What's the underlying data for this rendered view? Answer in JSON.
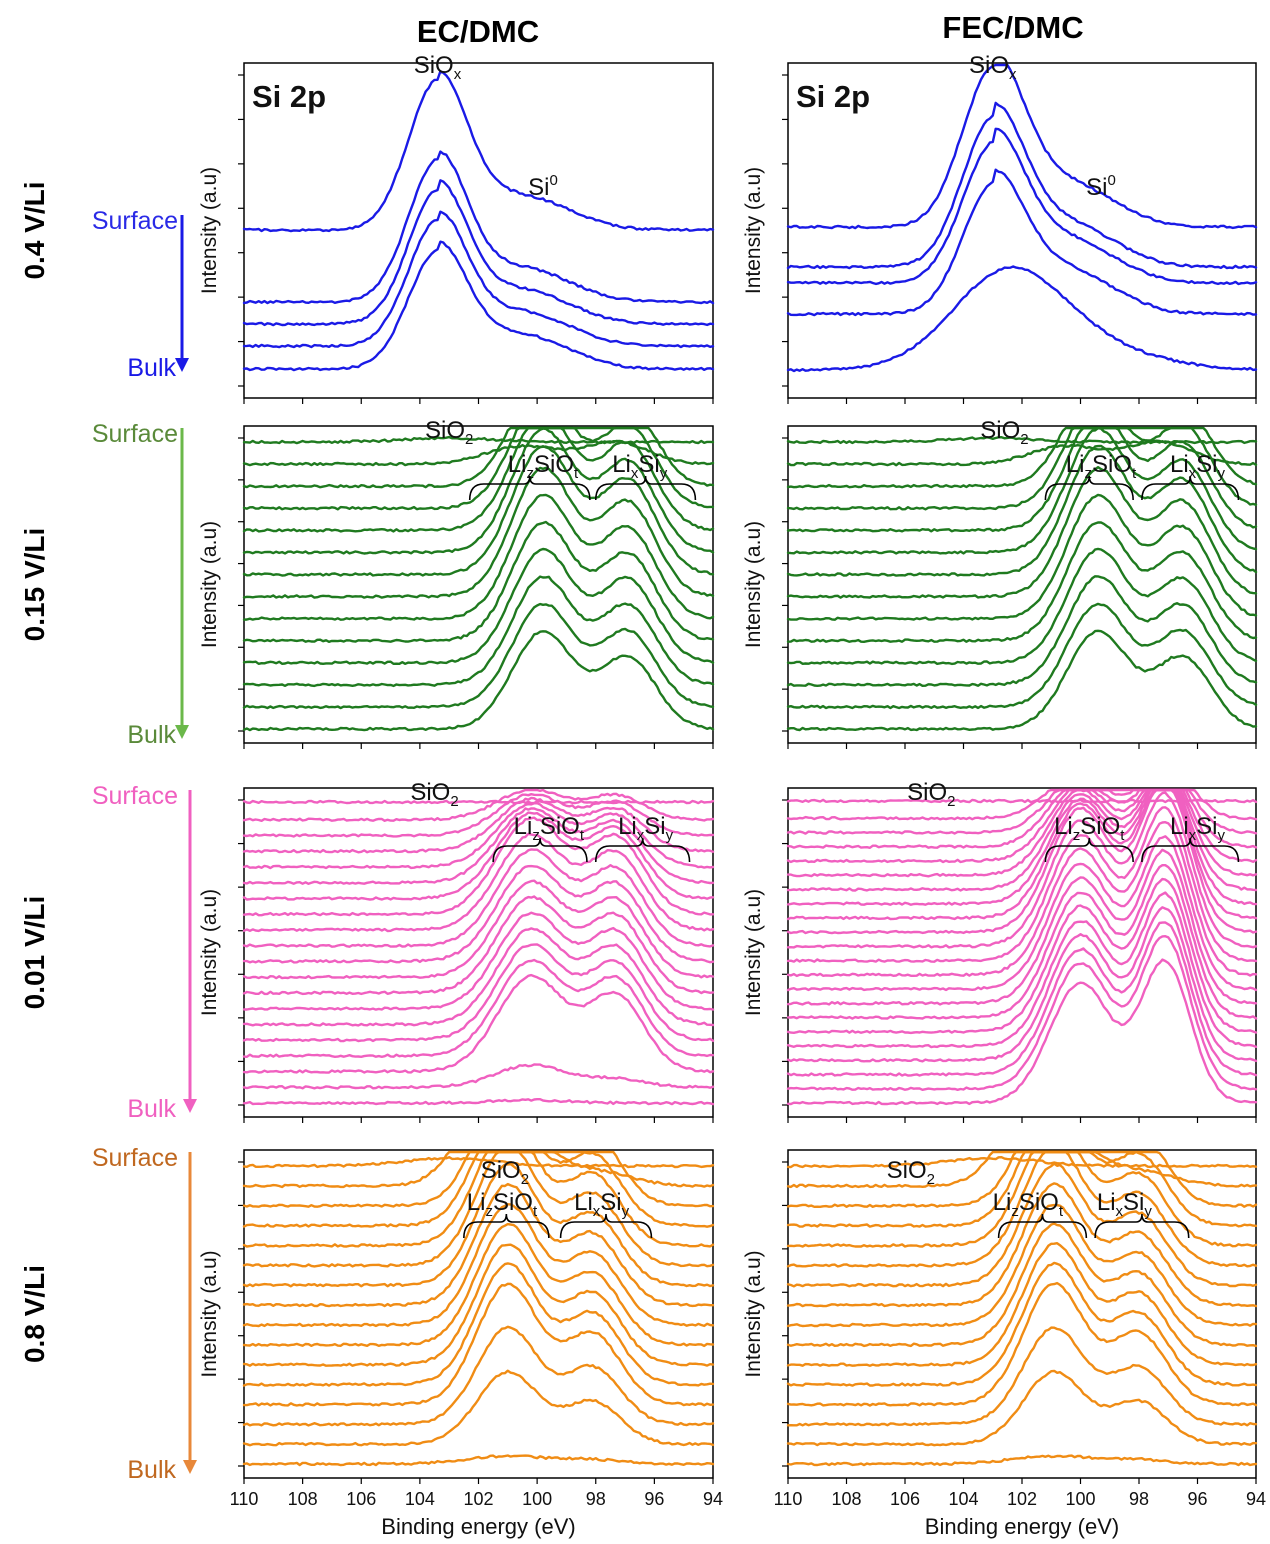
{
  "figure": {
    "column_titles": [
      "EC/DMC",
      "FEC/DMC"
    ],
    "ylabel": "Intensity (a.u)",
    "xlabel": "Binding energy (eV)",
    "x_ticks": [
      "110",
      "108",
      "106",
      "104",
      "102",
      "100",
      "98",
      "96",
      "94"
    ],
    "surface_label": "Surface",
    "bulk_label": "Bulk"
  },
  "chart_data": [
    {
      "type": "line",
      "row": 0,
      "column": "EC/DMC",
      "condition": "0.4 V/Li",
      "color": "#1a1ae6",
      "panel_title": "Si 2p",
      "n_traces": 5,
      "xlim": [
        110,
        94
      ],
      "peaks": [
        {
          "center": 103.4,
          "label": "SiOx"
        },
        {
          "center": 99.5,
          "label": "Si0"
        }
      ],
      "annotations": [
        {
          "base": "SiO",
          "sub": "x",
          "sup": "",
          "x": 103.4,
          "bracket": null
        },
        {
          "base": "Si",
          "sub": "",
          "sup": "0",
          "x": 99.8,
          "bracket": null
        }
      ]
    },
    {
      "type": "line",
      "row": 0,
      "column": "FEC/DMC",
      "condition": "0.4 V/Li",
      "color": "#1a1ae6",
      "panel_title": "Si 2p",
      "n_traces": 5,
      "xlim": [
        110,
        94
      ],
      "peaks": [
        {
          "center": 103.0,
          "label": "SiOx"
        },
        {
          "center": 99.5,
          "label": "Si0"
        }
      ],
      "annotations": [
        {
          "base": "SiO",
          "sub": "x",
          "sup": "",
          "x": 103.0,
          "bracket": null
        },
        {
          "base": "Si",
          "sub": "",
          "sup": "0",
          "x": 99.3,
          "bracket": null
        }
      ]
    },
    {
      "type": "line",
      "row": 1,
      "column": "EC/DMC",
      "condition": "0.15 V/Li",
      "color": "#1f7a1f",
      "panel_title": "",
      "n_traces": 14,
      "xlim": [
        110,
        94
      ],
      "peaks": [
        {
          "center": 103.0,
          "label": "SiO2"
        },
        {
          "center": 99.8,
          "label": "LizSiOt"
        },
        {
          "center": 96.9,
          "label": "LixSiy"
        }
      ],
      "annotations": [
        {
          "base": "SiO",
          "sub": "2",
          "sup": "",
          "x": 103.0,
          "bracket": null
        },
        {
          "base": "Li",
          "sub": "z",
          "sup": "",
          "tail": "SiO",
          "sub2": "t",
          "x": 99.8,
          "bracket": [
            102.3,
            98.2
          ]
        },
        {
          "base": "Li",
          "sub": "x",
          "sup": "",
          "tail": "Si",
          "sub2": "y",
          "x": 96.5,
          "bracket": [
            98.0,
            94.6
          ]
        }
      ]
    },
    {
      "type": "line",
      "row": 1,
      "column": "FEC/DMC",
      "condition": "0.15 V/Li",
      "color": "#1f7a1f",
      "panel_title": "",
      "n_traces": 14,
      "xlim": [
        110,
        94
      ],
      "peaks": [
        {
          "center": 103.1,
          "label": "SiO2"
        },
        {
          "center": 99.4,
          "label": "LizSiOt"
        },
        {
          "center": 96.5,
          "label": "LixSiy"
        }
      ],
      "annotations": [
        {
          "base": "SiO",
          "sub": "2",
          "sup": "",
          "x": 102.6,
          "bracket": null
        },
        {
          "base": "Li",
          "sub": "z",
          "sup": "",
          "tail": "SiO",
          "sub2": "t",
          "x": 99.3,
          "bracket": [
            101.2,
            98.2
          ]
        },
        {
          "base": "Li",
          "sub": "x",
          "sup": "",
          "tail": "Si",
          "sub2": "y",
          "x": 96.0,
          "bracket": [
            97.9,
            94.6
          ]
        }
      ]
    },
    {
      "type": "line",
      "row": 2,
      "column": "EC/DMC",
      "condition": "0.01 V/Li",
      "color": "#f060c0",
      "panel_title": "",
      "n_traces": 20,
      "xlim": [
        110,
        94
      ],
      "peaks": [
        {
          "center": 103.0,
          "label": "SiO2"
        },
        {
          "center": 100.2,
          "label": "LizSiOt"
        },
        {
          "center": 97.3,
          "label": "LixSiy"
        }
      ],
      "annotations": [
        {
          "base": "SiO",
          "sub": "2",
          "sup": "",
          "x": 103.5,
          "bracket": null
        },
        {
          "base": "Li",
          "sub": "z",
          "sup": "",
          "tail": "SiO",
          "sub2": "t",
          "x": 99.6,
          "bracket": [
            101.5,
            98.3
          ]
        },
        {
          "base": "Li",
          "sub": "x",
          "sup": "",
          "tail": "Si",
          "sub2": "y",
          "x": 96.3,
          "bracket": [
            98.0,
            94.8
          ]
        }
      ]
    },
    {
      "type": "line",
      "row": 2,
      "column": "FEC/DMC",
      "condition": "0.01 V/Li",
      "color": "#f060c0",
      "panel_title": "",
      "n_traces": 22,
      "xlim": [
        110,
        94
      ],
      "peaks": [
        {
          "center": 103.0,
          "label": "SiO2"
        },
        {
          "center": 100.0,
          "label": "LizSiOt"
        },
        {
          "center": 97.1,
          "label": "LixSiy"
        }
      ],
      "annotations": [
        {
          "base": "SiO",
          "sub": "2",
          "sup": "",
          "x": 105.1,
          "bracket": null
        },
        {
          "base": "Li",
          "sub": "z",
          "sup": "",
          "tail": "SiO",
          "sub2": "t",
          "x": 99.7,
          "bracket": [
            101.2,
            98.2
          ]
        },
        {
          "base": "Li",
          "sub": "x",
          "sup": "",
          "tail": "Si",
          "sub2": "y",
          "x": 96.0,
          "bracket": [
            97.9,
            94.6
          ]
        }
      ]
    },
    {
      "type": "line",
      "row": 3,
      "column": "EC/DMC",
      "condition": "0.8 V/Li",
      "color": "#f08c14",
      "panel_title": "",
      "n_traces": 16,
      "xlim": [
        110,
        94
      ],
      "peaks": [
        {
          "center": 103.0,
          "label": "SiO2"
        },
        {
          "center": 101.0,
          "label": "LizSiOt"
        },
        {
          "center": 98.1,
          "label": "LixSiy"
        }
      ],
      "annotations": [
        {
          "base": "SiO",
          "sub": "2",
          "sup": "",
          "x": 101.1,
          "bracket": null
        },
        {
          "base": "Li",
          "sub": "z",
          "sup": "",
          "tail": "SiO",
          "sub2": "t",
          "x": 101.2,
          "bracket": [
            102.5,
            99.6
          ]
        },
        {
          "base": "Li",
          "sub": "x",
          "sup": "",
          "tail": "Si",
          "sub2": "y",
          "x": 97.8,
          "bracket": [
            99.2,
            96.1
          ]
        }
      ]
    },
    {
      "type": "line",
      "row": 3,
      "column": "FEC/DMC",
      "condition": "0.8 V/Li",
      "color": "#f08c14",
      "panel_title": "",
      "n_traces": 16,
      "xlim": [
        110,
        94
      ],
      "peaks": [
        {
          "center": 103.0,
          "label": "SiO2"
        },
        {
          "center": 100.9,
          "label": "LizSiOt"
        },
        {
          "center": 98.0,
          "label": "LixSiy"
        }
      ],
      "annotations": [
        {
          "base": "SiO",
          "sub": "2",
          "sup": "",
          "x": 105.8,
          "bracket": null
        },
        {
          "base": "Li",
          "sub": "z",
          "sup": "",
          "tail": "SiO",
          "sub2": "t",
          "x": 101.8,
          "bracket": [
            102.8,
            99.8
          ]
        },
        {
          "base": "Li",
          "sub": "x",
          "sup": "",
          "tail": "Si",
          "sub2": "y",
          "x": 98.5,
          "bracket": [
            99.5,
            96.3
          ]
        }
      ]
    }
  ],
  "rows": [
    {
      "label": "0.4 V/Li",
      "color": "#1a1ae6",
      "label_color": "#000000",
      "surface_color": "#2a2ae6",
      "bulk_color": "#1a1ae6"
    },
    {
      "label": "0.15 V/Li",
      "color": "#6bb84a",
      "label_color": "#000000",
      "surface_color": "#5a8a3a",
      "bulk_color": "#5a8a3a"
    },
    {
      "label": "0.01 V/Li",
      "color": "#f060c0",
      "label_color": "#000000",
      "surface_color": "#f060c0",
      "bulk_color": "#f060c0"
    },
    {
      "label": "0.8 V/Li",
      "color": "#e8883a",
      "label_color": "#000000",
      "surface_color": "#c06820",
      "bulk_color": "#c06820"
    }
  ]
}
